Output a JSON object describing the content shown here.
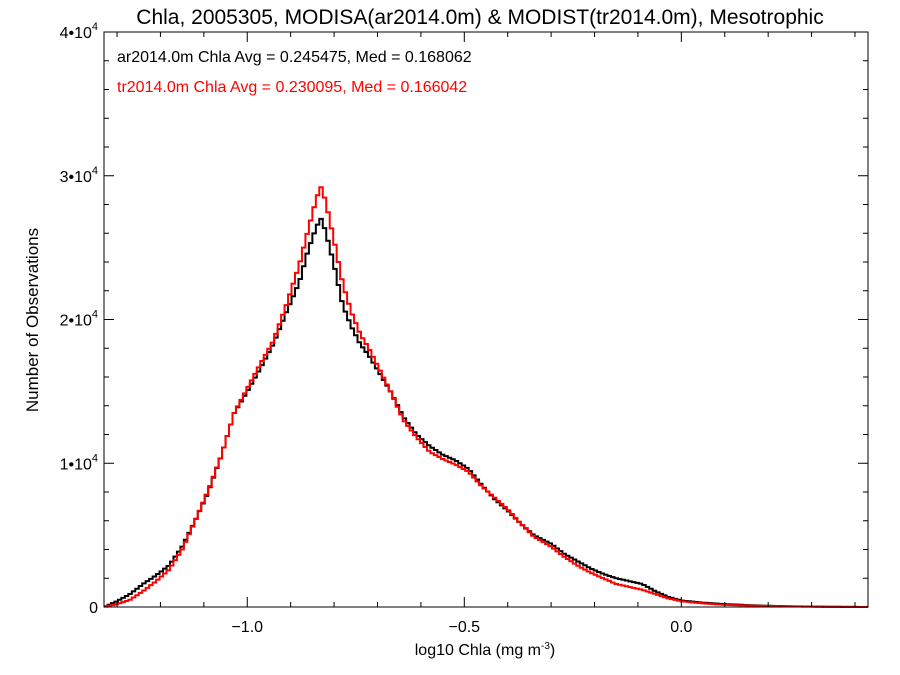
{
  "chart_data": {
    "type": "line",
    "title": "Chla, 2005305, MODISA(ar2014.0m) & MODIST(tr2014.0m), Mesotrophic",
    "xlabel": "log10 Chla (mg m",
    "xlabel_sup": "-3",
    "xlabel_end": ")",
    "ylabel": "Number of Observations",
    "xlim": [
      -1.33,
      0.43
    ],
    "ylim": [
      0,
      40000
    ],
    "xticks": [
      -1.0,
      -0.5,
      0.0
    ],
    "xtick_labels": [
      "−1.0",
      "−0.5",
      "0.0"
    ],
    "yticks": [
      0,
      10000,
      20000,
      30000,
      40000
    ],
    "ytick_labels": [
      {
        "base": "0",
        "exp": ""
      },
      {
        "base": "1•10",
        "exp": "4"
      },
      {
        "base": "2•10",
        "exp": "4"
      },
      {
        "base": "3•10",
        "exp": "4"
      },
      {
        "base": "4•10",
        "exp": "4"
      }
    ],
    "grid": false,
    "legend_position": "top-left",
    "series": [
      {
        "name": "ar2014.0m",
        "color": "#000000",
        "annotation": "ar2014.0m Chla Avg = 0.245475, Med = 0.168062",
        "points": [
          [
            -1.33,
            0
          ],
          [
            -1.3,
            400
          ],
          [
            -1.27,
            900
          ],
          [
            -1.24,
            1600
          ],
          [
            -1.21,
            2200
          ],
          [
            -1.18,
            2900
          ],
          [
            -1.15,
            4200
          ],
          [
            -1.12,
            6000
          ],
          [
            -1.09,
            8000
          ],
          [
            -1.06,
            10500
          ],
          [
            -1.03,
            13500
          ],
          [
            -1.0,
            15000
          ],
          [
            -0.97,
            16600
          ],
          [
            -0.94,
            18300
          ],
          [
            -0.91,
            20500
          ],
          [
            -0.88,
            22600
          ],
          [
            -0.86,
            24800
          ],
          [
            -0.84,
            26500
          ],
          [
            -0.83,
            27000
          ],
          [
            -0.82,
            26200
          ],
          [
            -0.8,
            23800
          ],
          [
            -0.78,
            21000
          ],
          [
            -0.76,
            19500
          ],
          [
            -0.74,
            18300
          ],
          [
            -0.72,
            17500
          ],
          [
            -0.7,
            16500
          ],
          [
            -0.67,
            15000
          ],
          [
            -0.64,
            13200
          ],
          [
            -0.61,
            12000
          ],
          [
            -0.58,
            11200
          ],
          [
            -0.55,
            10600
          ],
          [
            -0.52,
            10200
          ],
          [
            -0.49,
            9600
          ],
          [
            -0.46,
            8500
          ],
          [
            -0.43,
            7500
          ],
          [
            -0.4,
            6700
          ],
          [
            -0.37,
            5800
          ],
          [
            -0.34,
            5000
          ],
          [
            -0.3,
            4400
          ],
          [
            -0.27,
            3700
          ],
          [
            -0.24,
            3200
          ],
          [
            -0.21,
            2700
          ],
          [
            -0.18,
            2300
          ],
          [
            -0.15,
            2000
          ],
          [
            -0.12,
            1800
          ],
          [
            -0.09,
            1600
          ],
          [
            -0.06,
            1100
          ],
          [
            -0.03,
            700
          ],
          [
            0.0,
            450
          ],
          [
            0.05,
            300
          ],
          [
            0.1,
            200
          ],
          [
            0.18,
            100
          ],
          [
            0.25,
            50
          ],
          [
            0.33,
            20
          ],
          [
            0.43,
            0
          ]
        ]
      },
      {
        "name": "tr2014.0m",
        "color": "#ff0000",
        "annotation": "tr2014.0m Chla Avg = 0.230095, Med = 0.166042",
        "points": [
          [
            -1.33,
            0
          ],
          [
            -1.3,
            200
          ],
          [
            -1.27,
            500
          ],
          [
            -1.24,
            1100
          ],
          [
            -1.21,
            1800
          ],
          [
            -1.18,
            2600
          ],
          [
            -1.15,
            4000
          ],
          [
            -1.12,
            6000
          ],
          [
            -1.09,
            8100
          ],
          [
            -1.06,
            10500
          ],
          [
            -1.03,
            13500
          ],
          [
            -1.0,
            15200
          ],
          [
            -0.97,
            16900
          ],
          [
            -0.94,
            18500
          ],
          [
            -0.91,
            21000
          ],
          [
            -0.88,
            23800
          ],
          [
            -0.86,
            26200
          ],
          [
            -0.84,
            28500
          ],
          [
            -0.83,
            29200
          ],
          [
            -0.82,
            28300
          ],
          [
            -0.8,
            25500
          ],
          [
            -0.78,
            22500
          ],
          [
            -0.76,
            20500
          ],
          [
            -0.74,
            19000
          ],
          [
            -0.72,
            18000
          ],
          [
            -0.7,
            16800
          ],
          [
            -0.67,
            15000
          ],
          [
            -0.64,
            13000
          ],
          [
            -0.61,
            11800
          ],
          [
            -0.58,
            10800
          ],
          [
            -0.55,
            10300
          ],
          [
            -0.52,
            9900
          ],
          [
            -0.49,
            9400
          ],
          [
            -0.46,
            8400
          ],
          [
            -0.43,
            7600
          ],
          [
            -0.4,
            6800
          ],
          [
            -0.37,
            5800
          ],
          [
            -0.34,
            4900
          ],
          [
            -0.3,
            4200
          ],
          [
            -0.27,
            3500
          ],
          [
            -0.24,
            2900
          ],
          [
            -0.21,
            2400
          ],
          [
            -0.18,
            2000
          ],
          [
            -0.15,
            1600
          ],
          [
            -0.12,
            1400
          ],
          [
            -0.09,
            1200
          ],
          [
            -0.06,
            900
          ],
          [
            -0.03,
            600
          ],
          [
            0.0,
            400
          ],
          [
            0.05,
            250
          ],
          [
            0.1,
            150
          ],
          [
            0.18,
            80
          ],
          [
            0.25,
            40
          ],
          [
            0.33,
            15
          ],
          [
            0.43,
            0
          ]
        ]
      }
    ]
  }
}
